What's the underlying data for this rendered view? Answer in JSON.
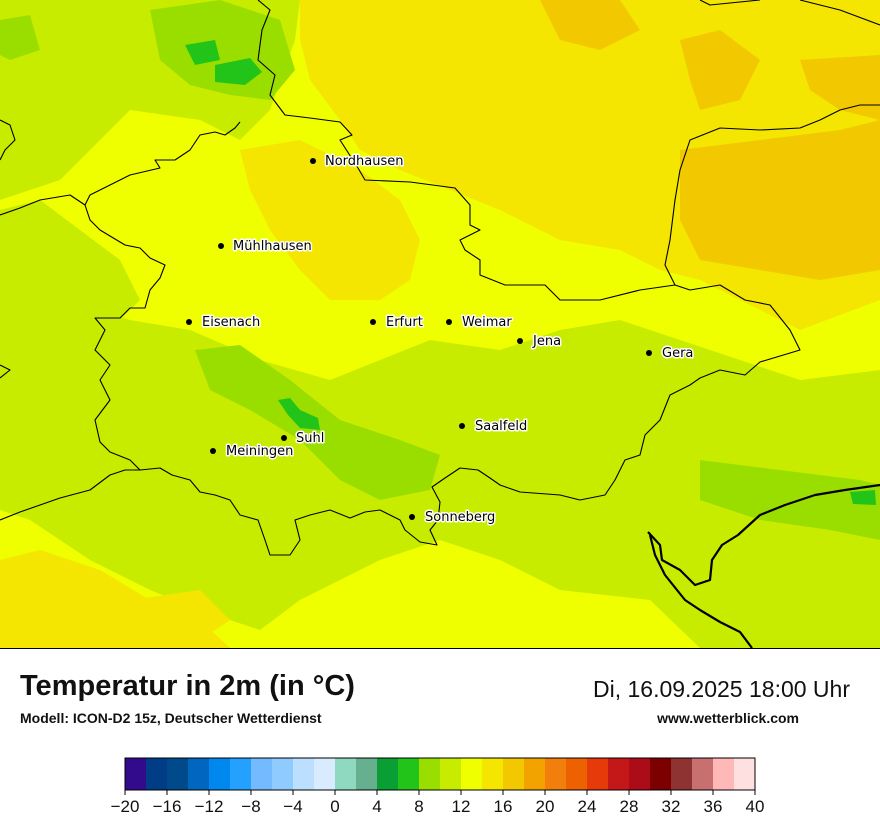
{
  "header": {
    "title": "Temperatur in 2m (in °C)",
    "subtitle": "Modell: ICON-D2 15z, Deutscher Wetterdienst",
    "datetime": "Di, 16.09.2025 18:00 Uhr",
    "website": "www.wetterblick.com"
  },
  "colors": {
    "t10": "#9ade00",
    "t12": "#c8ec00",
    "t14": "#f0ff00",
    "t16": "#f4e600",
    "t18": "#f2c800",
    "t8": "#22c41a",
    "border": "#000000",
    "city_dot": "#000000"
  },
  "cities": [
    {
      "name": "Nordhausen"
    },
    {
      "name": "Mühlhausen"
    },
    {
      "name": "Eisenach"
    },
    {
      "name": "Erfurt"
    },
    {
      "name": "Weimar"
    },
    {
      "name": "Jena"
    },
    {
      "name": "Gera"
    },
    {
      "name": "Saalfeld"
    },
    {
      "name": "Suhl"
    },
    {
      "name": "Meiningen"
    },
    {
      "name": "Sonneberg"
    }
  ],
  "legend": {
    "colors": [
      "#310b8c",
      "#003d86",
      "#004a8c",
      "#0066c0",
      "#0088ee",
      "#24a0ff",
      "#73baff",
      "#90cbff",
      "#bddfff",
      "#d9ecff",
      "#8ed9bf",
      "#66b08f",
      "#0a9e35",
      "#22c41a",
      "#9ade00",
      "#c8ec00",
      "#f0ff00",
      "#f4e600",
      "#f2c800",
      "#f2a300",
      "#f27f0b",
      "#ee6100",
      "#e63a0a",
      "#c41818",
      "#ab0c18",
      "#7d0000",
      "#8e3232",
      "#c87070",
      "#ffb8b8",
      "#ffe0e0"
    ],
    "tick_labels": [
      "−20",
      "−16",
      "−12",
      "−8",
      "−4",
      "0",
      "4",
      "8",
      "12",
      "16",
      "20",
      "24",
      "28",
      "32",
      "36",
      "40"
    ]
  }
}
